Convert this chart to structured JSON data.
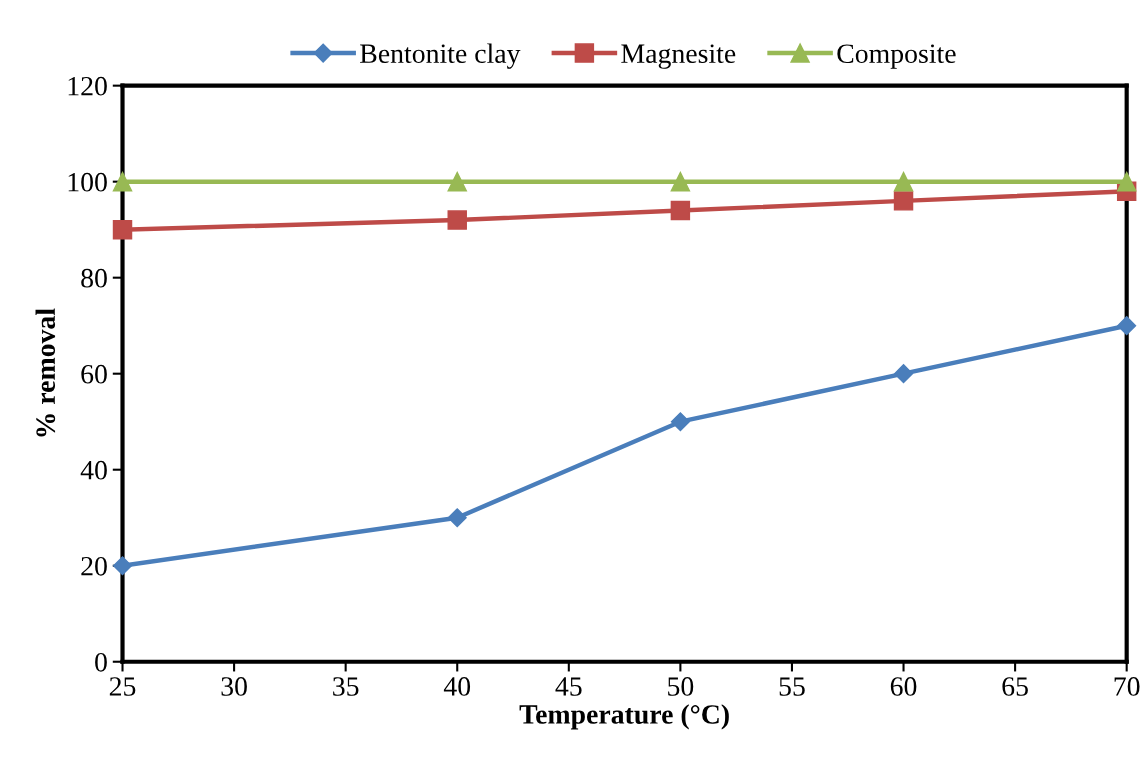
{
  "chart_data": {
    "type": "line",
    "xlabel": "Temperature (°C)",
    "ylabel": "% removal",
    "x": [
      25,
      40,
      50,
      60,
      70
    ],
    "series": [
      {
        "name": "Bentonite clay",
        "color": "#4a7ebb",
        "marker": "diamond",
        "values": [
          20,
          30,
          50,
          60,
          70
        ]
      },
      {
        "name": "Magnesite",
        "color": "#be4b48",
        "marker": "square",
        "values": [
          90,
          92,
          94,
          96,
          98
        ]
      },
      {
        "name": "Composite",
        "color": "#98b954",
        "marker": "triangle",
        "values": [
          100,
          100,
          100,
          100,
          100
        ]
      }
    ],
    "xlim": [
      25,
      70
    ],
    "xticks": [
      25,
      30,
      35,
      40,
      45,
      50,
      55,
      60,
      65,
      70
    ],
    "ylim": [
      0,
      120
    ],
    "yticks": [
      0,
      20,
      40,
      60,
      80,
      100,
      120
    ],
    "grid": false,
    "legend": "top",
    "line_style": "solid"
  }
}
